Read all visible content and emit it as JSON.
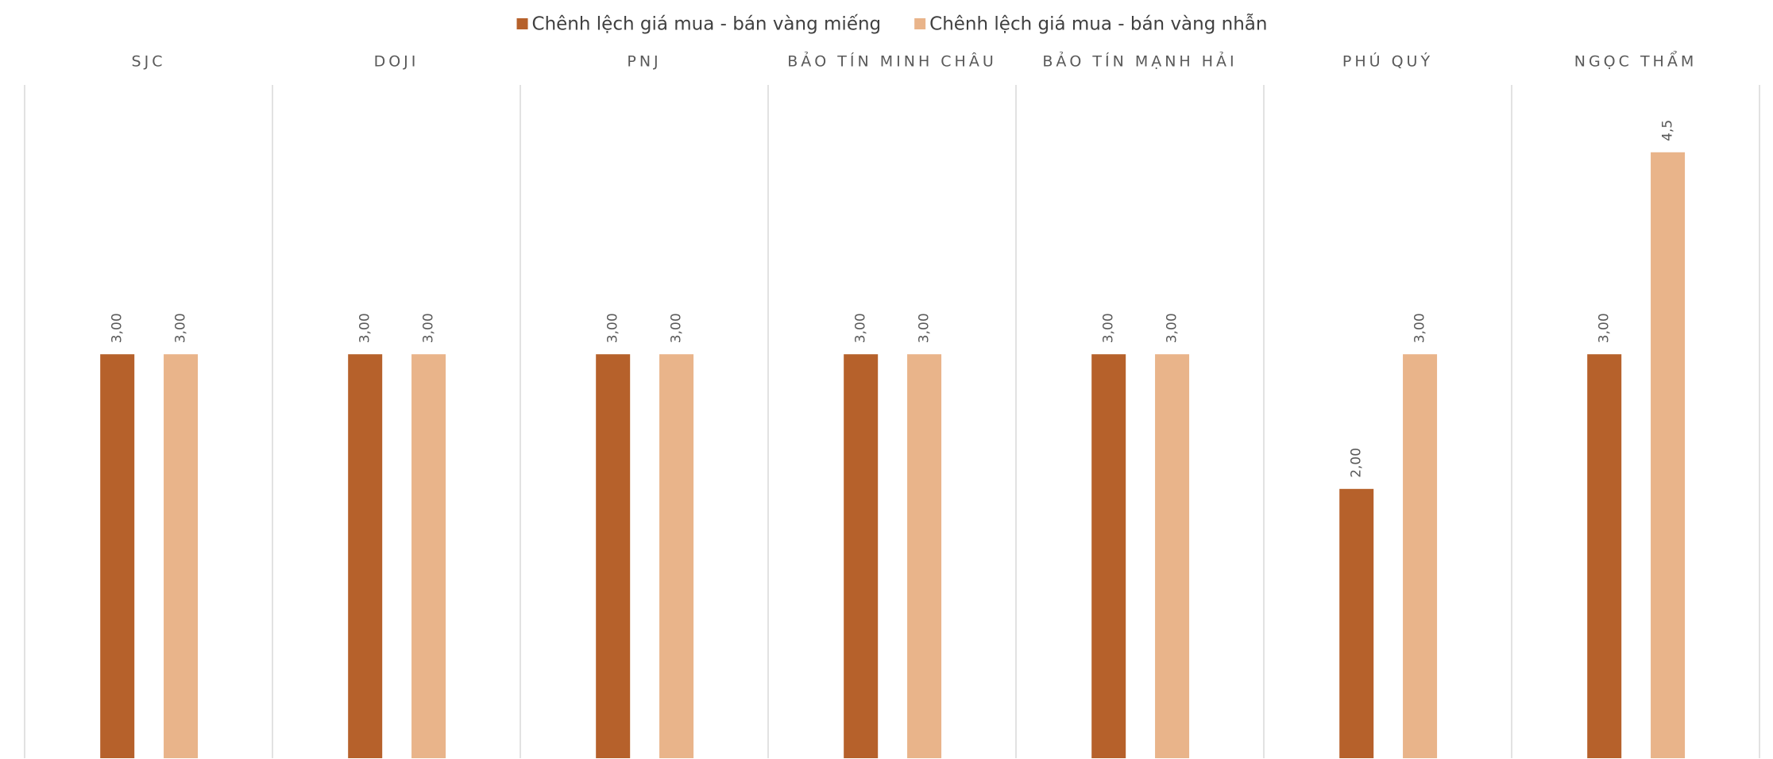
{
  "chart_data": {
    "type": "bar",
    "categories": [
      "SJC",
      "DOJI",
      "PNJ",
      "BẢO TÍN MINH CHÂU",
      "BẢO TÍN MẠNH HẢI",
      "PHÚ QUÝ",
      "NGỌC THẨM"
    ],
    "series": [
      {
        "name": "Chênh lệch giá mua - bán vàng miếng",
        "color": "#b6612b",
        "values": [
          3,
          3,
          3,
          3,
          3,
          2,
          3
        ],
        "value_labels": [
          "3,00",
          "3,00",
          "3,00",
          "3,00",
          "3,00",
          "2,00",
          "3,00"
        ]
      },
      {
        "name": "Chênh lệch giá mua - bán vàng nhẫn",
        "color": "#e9b48a",
        "values": [
          3,
          3,
          3,
          3,
          3,
          3,
          4.5
        ],
        "value_labels": [
          "3,00",
          "3,00",
          "3,00",
          "3,00",
          "3,00",
          "3,00",
          "4,5"
        ]
      }
    ],
    "ylim": [
      0,
      5
    ],
    "legend": "top"
  }
}
